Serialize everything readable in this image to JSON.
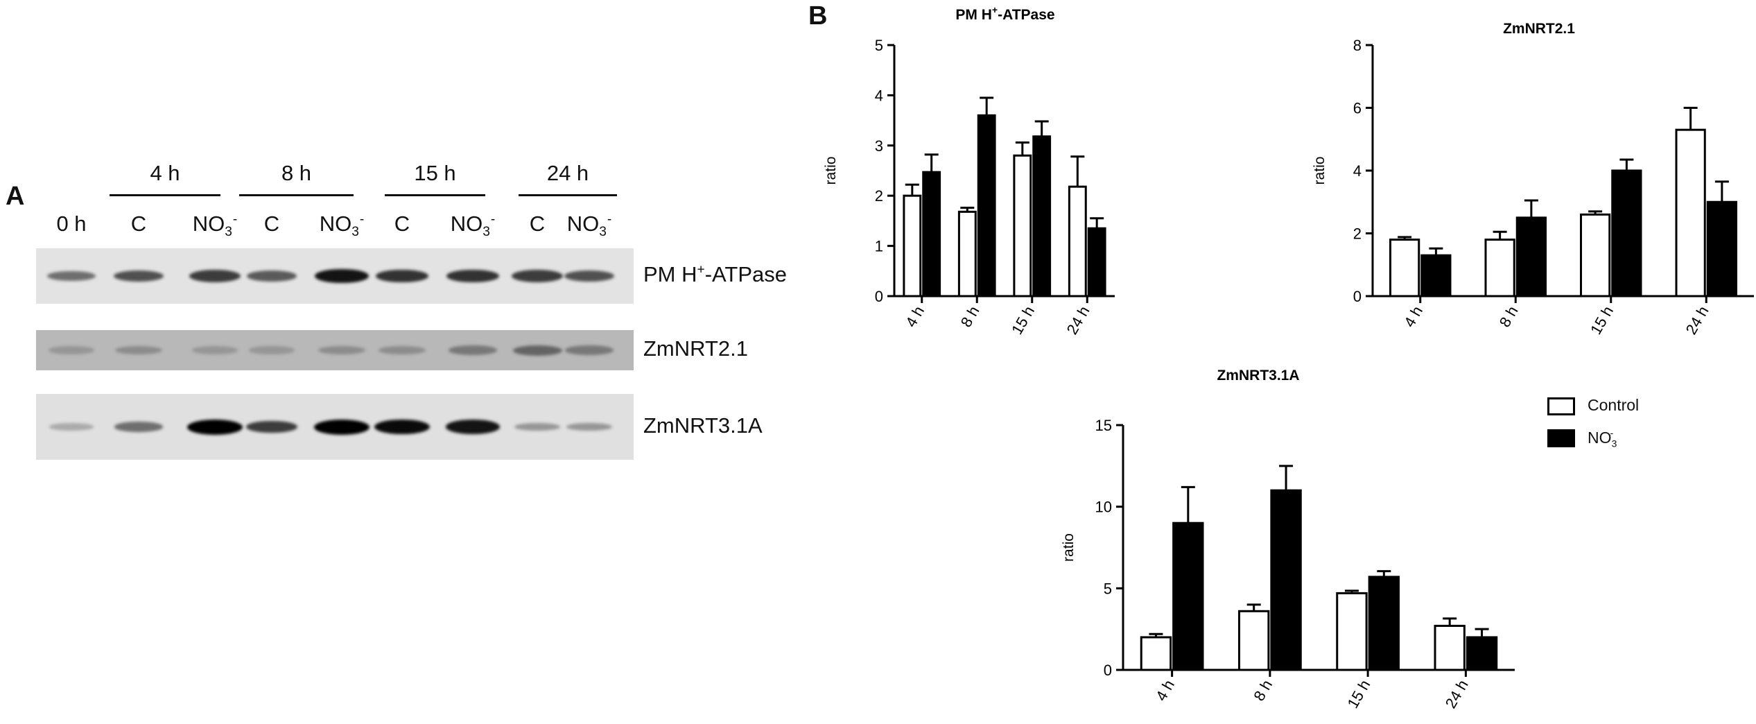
{
  "panel_a": {
    "letter": "A",
    "time_groups": [
      "4 h",
      "8 h",
      "15 h",
      "24 h"
    ],
    "lane_labels": [
      {
        "main": "0 h",
        "sub": "",
        "sup": ""
      },
      {
        "main": "C",
        "sub": "",
        "sup": ""
      },
      {
        "main": "NO",
        "sub": "3",
        "sup": "-"
      },
      {
        "main": "C",
        "sub": "",
        "sup": ""
      },
      {
        "main": "NO",
        "sub": "3",
        "sup": "-"
      },
      {
        "main": "C",
        "sub": "",
        "sup": ""
      },
      {
        "main": "NO",
        "sub": "3",
        "sup": "-"
      },
      {
        "main": "C",
        "sub": "",
        "sup": ""
      },
      {
        "main": "NO",
        "sub": "3",
        "sup": "-"
      }
    ],
    "blots": [
      {
        "name": "PM H",
        "name_sup": "+",
        "name_rest": "-ATPase",
        "background": "#e3e3e3",
        "band_intensity": [
          0.45,
          0.6,
          0.7,
          0.55,
          0.9,
          0.75,
          0.75,
          0.7,
          0.6
        ]
      },
      {
        "name": "ZmNRT2.1",
        "name_sup": "",
        "name_rest": "",
        "background": "#b8b8b8",
        "band_intensity": [
          0.25,
          0.3,
          0.25,
          0.25,
          0.3,
          0.3,
          0.4,
          0.5,
          0.4
        ]
      },
      {
        "name": "ZmNRT3.1A",
        "name_sup": "",
        "name_rest": "",
        "background": "#e0e0e0",
        "band_intensity": [
          0.15,
          0.45,
          1.0,
          0.7,
          1.0,
          0.95,
          0.9,
          0.25,
          0.25
        ]
      }
    ]
  },
  "panel_b": {
    "letter": "B",
    "legend": [
      {
        "label": "Control",
        "label_sub": "",
        "label_sup": "",
        "color": "#ffffff"
      },
      {
        "label": "NO",
        "label_sub": "3",
        "label_sup": "-",
        "color": "#000000"
      }
    ]
  },
  "chart_data": [
    {
      "type": "bar",
      "title": "PM H",
      "title_sup": "+",
      "title_rest": "-ATPase",
      "ylabel": "ratio",
      "xlabel": "",
      "categories": [
        "4 h",
        "8 h",
        "15 h",
        "24 h"
      ],
      "ylim": [
        0,
        5
      ],
      "yticks": [
        "0",
        "1",
        "2",
        "3",
        "4",
        "5"
      ],
      "series": [
        {
          "name": "Control",
          "color": "#ffffff",
          "values": [
            2.0,
            1.68,
            2.8,
            2.18
          ],
          "errors": [
            0.22,
            0.08,
            0.26,
            0.6
          ]
        },
        {
          "name": "NO3-",
          "color": "#000000",
          "values": [
            2.47,
            3.6,
            3.18,
            1.35
          ],
          "errors": [
            0.35,
            0.35,
            0.3,
            0.2
          ]
        }
      ]
    },
    {
      "type": "bar",
      "title": "ZmNRT2.1",
      "title_sup": "",
      "title_rest": "",
      "ylabel": "ratio",
      "xlabel": "",
      "categories": [
        "4 h",
        "8 h",
        "15 h",
        "24 h"
      ],
      "ylim": [
        0,
        8
      ],
      "yticks": [
        "0",
        "2",
        "4",
        "6",
        "8"
      ],
      "series": [
        {
          "name": "Control",
          "color": "#ffffff",
          "values": [
            1.8,
            1.8,
            2.6,
            5.3
          ],
          "errors": [
            0.08,
            0.25,
            0.1,
            0.7
          ]
        },
        {
          "name": "NO3-",
          "color": "#000000",
          "values": [
            1.3,
            2.5,
            4.0,
            3.0
          ],
          "errors": [
            0.22,
            0.55,
            0.35,
            0.65
          ]
        }
      ]
    },
    {
      "type": "bar",
      "title": "ZmNRT3.1A",
      "title_sup": "",
      "title_rest": "",
      "ylabel": "ratio",
      "xlabel": "",
      "categories": [
        "4 h",
        "8 h",
        "15 h",
        "24 h"
      ],
      "ylim": [
        0,
        15
      ],
      "yticks": [
        "0",
        "5",
        "10",
        "15"
      ],
      "series": [
        {
          "name": "Control",
          "color": "#ffffff",
          "values": [
            2.0,
            3.6,
            4.7,
            2.7
          ],
          "errors": [
            0.2,
            0.4,
            0.15,
            0.45
          ]
        },
        {
          "name": "NO3-",
          "color": "#000000",
          "values": [
            9.0,
            11.0,
            5.7,
            2.0
          ],
          "errors": [
            2.2,
            1.5,
            0.35,
            0.5
          ]
        }
      ]
    }
  ]
}
